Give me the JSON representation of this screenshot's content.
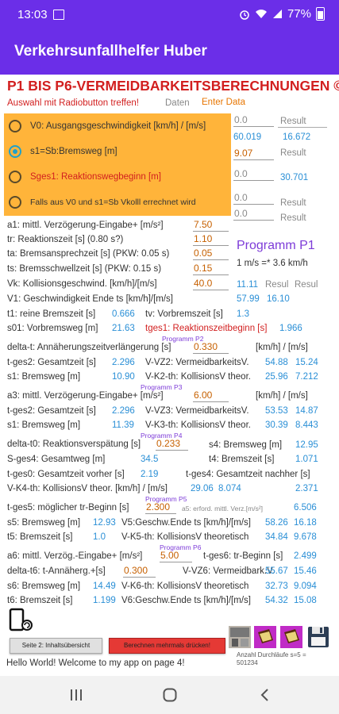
{
  "status": {
    "time": "13:03",
    "battery": "77%",
    "icons": [
      "image-icon",
      "alarm-icon",
      "wifi-icon",
      "signal-icon",
      "battery-icon"
    ]
  },
  "app": {
    "title": "Verkehrsunfallhelfer Huber"
  },
  "heading": "P1 BIS P6-VERMEIDBARKEITSBERECHNUNGEN ©",
  "hint": "Auswahl mit Radiobutton treffen!",
  "daten_label": "Daten",
  "enter_data": "Enter Data",
  "radios": [
    {
      "label": "V0: Ausgangsgeschwindigkeit [km/h] / [m/s]",
      "checked": false
    },
    {
      "label": "s1=Sb:Bremsweg [m]",
      "checked": true
    },
    {
      "label": "Sges1: Reaktionswegbeginn [m]",
      "checked": false
    },
    {
      "label": "Falls aus V0 und s1=Sb Vkolll errechnet wird",
      "checked": false
    }
  ],
  "right_inputs": [
    {
      "value": "0.0",
      "result_label": "Result"
    },
    {
      "value": "9.07",
      "result_label": "Result"
    },
    {
      "value": "0.0",
      "result_label": "Result"
    },
    {
      "value": "0.0",
      "result_label": "Result"
    }
  ],
  "right_results": {
    "r1a": "60.019",
    "r1b": "16.672",
    "r3": "30.701"
  },
  "p1": {
    "a1_label": "a1: mittl. Verzögerung-Eingabe+ [m/s²]",
    "a1": "7.50",
    "tr_label": "tr: Reaktionszeit [s] (0.80 s?)",
    "tr": "1.10",
    "ta_label": "ta: Bremsansprechzeit [s] (PKW: 0.05 s)",
    "ta": "0.05",
    "ts_label": "ts: Bremsschwellzeit [s] (PKW: 0.15 s)",
    "ts": "0.15",
    "vk_label": "Vk: Kollisionsgeschwind. [km/h]/[m/s]",
    "vk": "40.0",
    "prog_title": "Programm P1",
    "conv": "1 m/s =* 3.6 km/h",
    "vk_res": "11.11",
    "resul1": "Resul",
    "resul2": "Resul",
    "v1_label": "V1: Geschwindigkeit Ende ts [km/h]/[m/s]",
    "v1a": "57.99",
    "v1b": "16.10",
    "t1_label": "t1: reine Bremszeit [s]",
    "t1": "0.666",
    "tv_label": "tv: Vorbremszeit [s]",
    "tv": "1.3",
    "s01_label": "s01: Vorbremsweg [m]",
    "s01": "21.63",
    "tges1_label": "tges1: Reaktionszeitbeginn [s]",
    "tges1": "1.966"
  },
  "p2": {
    "tag": "Programm P2",
    "dt_label": "delta-t: Annäherungszeitverlängerung [s]",
    "dt": "0.330",
    "unit": "[km/h] / [m/s]",
    "tges2_label": "t-ges2: Gesamtzeit [s]",
    "tges2": "2.296",
    "vz2_label": "V-VZ2: VermeidbarkeitsV.",
    "vz2a": "54.88",
    "vz2b": "15.24",
    "s1_label": "s1: Bremsweg [m]",
    "s1": "10.90",
    "k2_label": "V-K2-th: KollisionsV theor.",
    "k2a": "25.96",
    "k2b": "7.212"
  },
  "p3": {
    "tag": "Programm P3",
    "a3_label": "a3: mittl. Verzögerung-Eingabe+ [m/s²]",
    "a3": "6.00",
    "unit": "[km/h] / [m/s]",
    "tges2_label": "t-ges2: Gesamtzeit [s]",
    "tges2": "2.296",
    "vz3_label": "V-VZ3: VermeidbarkeitsV.",
    "vz3a": "53.53",
    "vz3b": "14.87",
    "s1_label": "s1: Bremsweg [m]",
    "s1": "11.39",
    "k3_label": "V-K3-th: KollisionsV theor.",
    "k3a": "30.39",
    "k3b": "8.443"
  },
  "p4": {
    "tag": "Programm P4",
    "dt0_label": "delta-t0: Reaktionsverspätung [s]",
    "dt0": "0.233",
    "s4_label": "s4: Bremsweg [m]",
    "s4": "12.95",
    "sges4_label": "S-ges4: Gesamtweg [m]",
    "sges4": "34.5",
    "t4_label": "t4: Bremszeit [s]",
    "t4": "1.071",
    "tges0_label": "t-ges0: Gesamtzeit vorher [s]",
    "tges0": "2.19",
    "tges4_label": "t-ges4: Gesamtzeit nachher [s]",
    "k4_label": "V-K4-th: KollisionsV theor. [km/h] / [m/s]",
    "k4a": "29.06",
    "k4b": "8.074",
    "tges4": "2.371"
  },
  "p5": {
    "tag": "Programm P5",
    "tges5_label": "t-ges5: möglicher tr-Beginn [s]",
    "tges5": "2.300",
    "a5_label": "a5: erford. mittl. Verz.[m/s²]",
    "a5": "6.506",
    "s5_label": "s5: Bremsweg [m]",
    "s5": "12.93",
    "v5_label": "V5:Geschw.Ende ts [km/h]/[m/s]",
    "v5a": "58.26",
    "v5b": "16.18",
    "t5_label": "t5: Bremszeit [s]",
    "t5": "1.0",
    "k5_label": "V-K5-th: KollisionsV theoretisch",
    "k5a": "34.84",
    "k5b": "9.678"
  },
  "p6": {
    "tag": "Programm P6",
    "a6_label": "a6: mittl. Verzög.-Eingabe+ [m/s²]",
    "a6": "5.00",
    "tges6_label": "t-ges6: tr-Beginn [s]",
    "tges6": "2.499",
    "dt6_label": "delta-t6: t-Annäherg.+[s]",
    "dt6": "0.300",
    "vz6_label": "V-VZ6: Vermeidbark.V.",
    "vz6a": "55.67",
    "vz6b": "15.46",
    "s6_label": "s6: Bremsweg [m]",
    "s6": "14.49",
    "k6_label": "V-K6-th: KollisionsV theoretisch",
    "k6a": "32.73",
    "k6b": "9.094",
    "t6_label": "t6: Bremszeit [s]",
    "t6": "1.199",
    "v6_label": "V6:Geschw.Ende ts [km/h]/[m/s]",
    "v6a": "54.32",
    "v6b": "15.08"
  },
  "buttons": {
    "page2": "Seite 2: Inhaltsübersicht",
    "compute": "Berechnen mehrmals drücken!"
  },
  "count": {
    "line1": "Anzahl Durchläufe s=5 =",
    "line2": "501234"
  },
  "footer": "Hello World! Welcome to my app on page 4!"
}
